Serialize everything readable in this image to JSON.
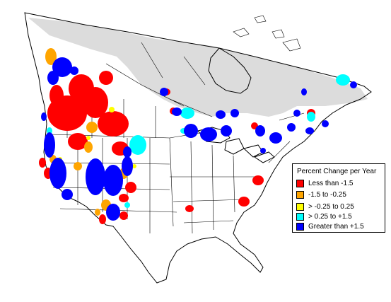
{
  "legend": {
    "title": "Percent Change per Year",
    "items": [
      {
        "label": "Less than -1.5",
        "color": "#ff0000"
      },
      {
        "label": "-1.5 to -0.25",
        "color": "#ffa500"
      },
      {
        "label": "> -0.25 to 0.25",
        "color": "#ffff00"
      },
      {
        "label": "> 0.25 to +1.5",
        "color": "#00ffff"
      },
      {
        "label": "Greater than +1.5",
        "color": "#0000ff"
      }
    ]
  },
  "colors": {
    "no_data": "#dcdcdc",
    "land": "#ffffff",
    "border": "#000000"
  }
}
